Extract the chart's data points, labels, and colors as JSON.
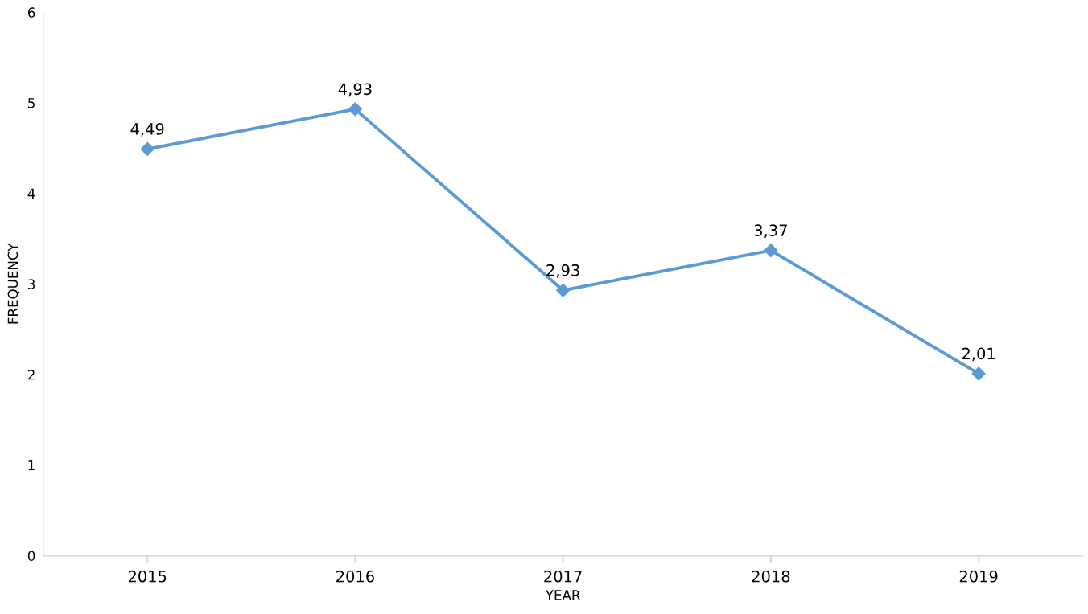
{
  "chart_data": {
    "type": "line",
    "xlabel": "YEAR",
    "ylabel": "FREQUENCY",
    "categories": [
      "2015",
      "2016",
      "2017",
      "2018",
      "2019"
    ],
    "series": [
      {
        "color": "#5b9bd5",
        "values": [
          4.49,
          4.93,
          2.93,
          3.37,
          2.01
        ],
        "value_labels": [
          "4,49",
          "4,93",
          "2,93",
          "3,37",
          "2,01"
        ]
      }
    ],
    "ylim": [
      0,
      6
    ],
    "yticks": [
      0,
      1,
      2,
      3,
      4,
      5,
      6
    ],
    "marker": "diamond",
    "line_style": "solid",
    "grid": false,
    "legend": false
  }
}
